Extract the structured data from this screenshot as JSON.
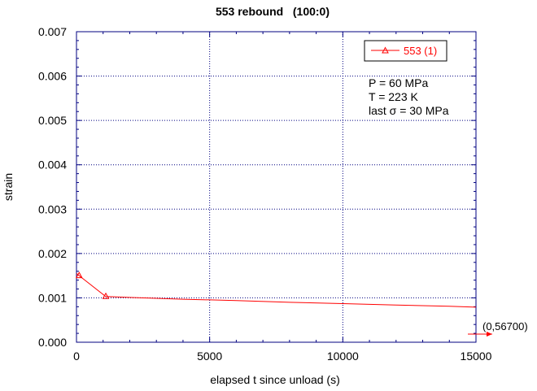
{
  "chart_data": {
    "type": "line",
    "title": "553 rebound   (100:0)",
    "xlabel": "elapsed t since unload (s)",
    "ylabel": "strain",
    "xlim": [
      0,
      15000
    ],
    "ylim": [
      0,
      0.007
    ],
    "x_ticks": [
      "0",
      "5000",
      "10000",
      "15000"
    ],
    "y_ticks": [
      "0.000",
      "0.001",
      "0.002",
      "0.003",
      "0.004",
      "0.005",
      "0.006",
      "0.007"
    ],
    "grid": true,
    "legend_position": "top-right",
    "series": [
      {
        "name": "553 (1)",
        "color": "#ff0000",
        "marker": "triangle",
        "x": [
          0,
          100,
          1100,
          2000,
          4000,
          6000,
          8000,
          10000,
          12000,
          14000,
          15000
        ],
        "y": [
          0.00155,
          0.0015,
          0.00103,
          0.00101,
          0.00097,
          0.00094,
          0.0009,
          0.00087,
          0.00084,
          0.00081,
          0.00079
        ],
        "marker_indices": [
          1,
          2
        ]
      }
    ],
    "annotations": [
      "P = 60 MPa",
      "T = 223 K",
      "last σ = 30 MPa"
    ],
    "offscale_label": "(0,56700)"
  }
}
